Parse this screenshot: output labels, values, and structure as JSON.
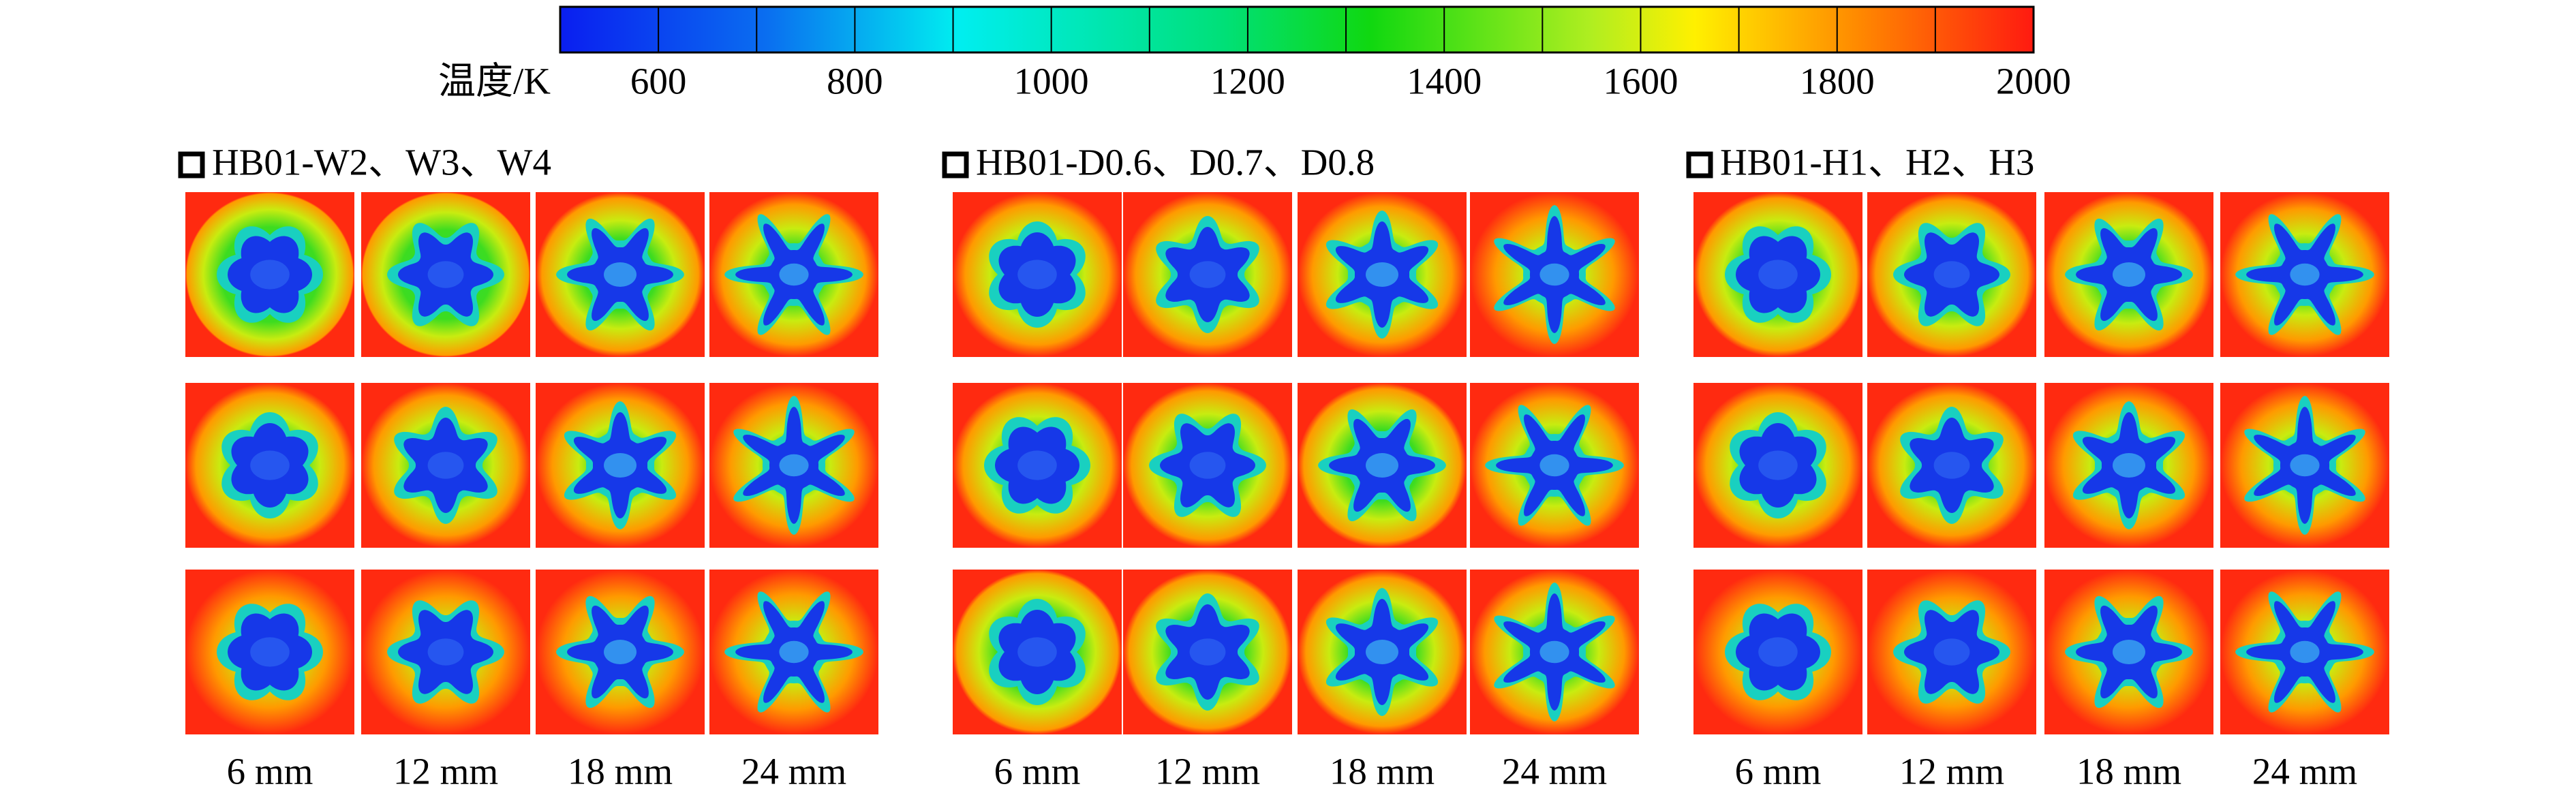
{
  "colorbar": {
    "label": "温度/K",
    "lim": [
      500,
      2000
    ],
    "ticks": [
      600,
      800,
      1000,
      1200,
      1400,
      1600,
      1800,
      2000
    ]
  },
  "panels": [
    {
      "title": "HB01-W2、W3、W4",
      "columns": [
        "6 mm",
        "12 mm",
        "18 mm",
        "24 mm"
      ]
    },
    {
      "title": "HB01-D0.6、D0.7、D0.8",
      "columns": [
        "6 mm",
        "12 mm",
        "18 mm",
        "24 mm"
      ]
    },
    {
      "title": "HB01-H1、H2、H3",
      "columns": [
        "6 mm",
        "12 mm",
        "18 mm",
        "24 mm"
      ]
    }
  ]
}
